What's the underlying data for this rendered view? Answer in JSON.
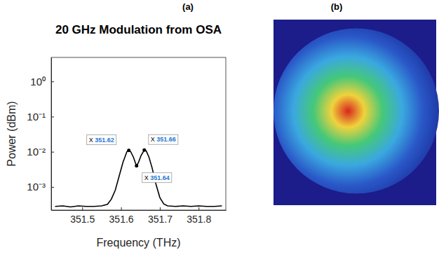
{
  "chart_data": {
    "type": "line",
    "label": "(a)",
    "title": "20 GHz Modulation from OSA",
    "x_label": "Frequency (THz)",
    "y_label": "Power (dBm)",
    "log": "y",
    "color": "#000000",
    "x": [
      351.43,
      351.45,
      351.47,
      351.49,
      351.51,
      351.53,
      351.55,
      351.565,
      351.575,
      351.585,
      351.595,
      351.605,
      351.615,
      351.62,
      351.625,
      351.632,
      351.638,
      351.64,
      351.645,
      351.652,
      351.66,
      351.665,
      351.672,
      351.68,
      351.69,
      351.7,
      351.71,
      351.72,
      351.74,
      351.76,
      351.78,
      351.8,
      351.82,
      351.84,
      351.86
    ],
    "y": [
      0.00028,
      0.00029,
      0.00027,
      0.00029,
      0.00028,
      0.00028,
      0.00029,
      0.00032,
      0.00045,
      0.0008,
      0.002,
      0.005,
      0.01,
      0.011,
      0.01,
      0.007,
      0.0045,
      0.004,
      0.005,
      0.008,
      0.0112,
      0.0105,
      0.007,
      0.0035,
      0.0012,
      0.0005,
      0.00033,
      0.00029,
      0.00028,
      0.00029,
      0.00028,
      0.00029,
      0.00028,
      0.00028,
      0.00029
    ],
    "xlim": [
      351.42,
      351.87
    ],
    "xticks": [
      351.5,
      351.6,
      351.7,
      351.8
    ],
    "ylim": [
      0.00022,
      4.8
    ],
    "yticks": [
      {
        "value": 0.001,
        "label": "10⁻³"
      },
      {
        "value": 0.01,
        "label": "10⁻²"
      },
      {
        "value": 0.1,
        "label": "10⁻¹"
      },
      {
        "value": 1,
        "label": "10⁰"
      }
    ],
    "annotations": [
      {
        "text": "X 351.62",
        "x": 351.62,
        "y": 0.011
      },
      {
        "text": "X 351.66",
        "x": 351.66,
        "y": 0.0112
      },
      {
        "text": "X 351.64",
        "x": 351.64,
        "y": 0.004
      }
    ]
  },
  "image": {
    "label": "(b)"
  }
}
